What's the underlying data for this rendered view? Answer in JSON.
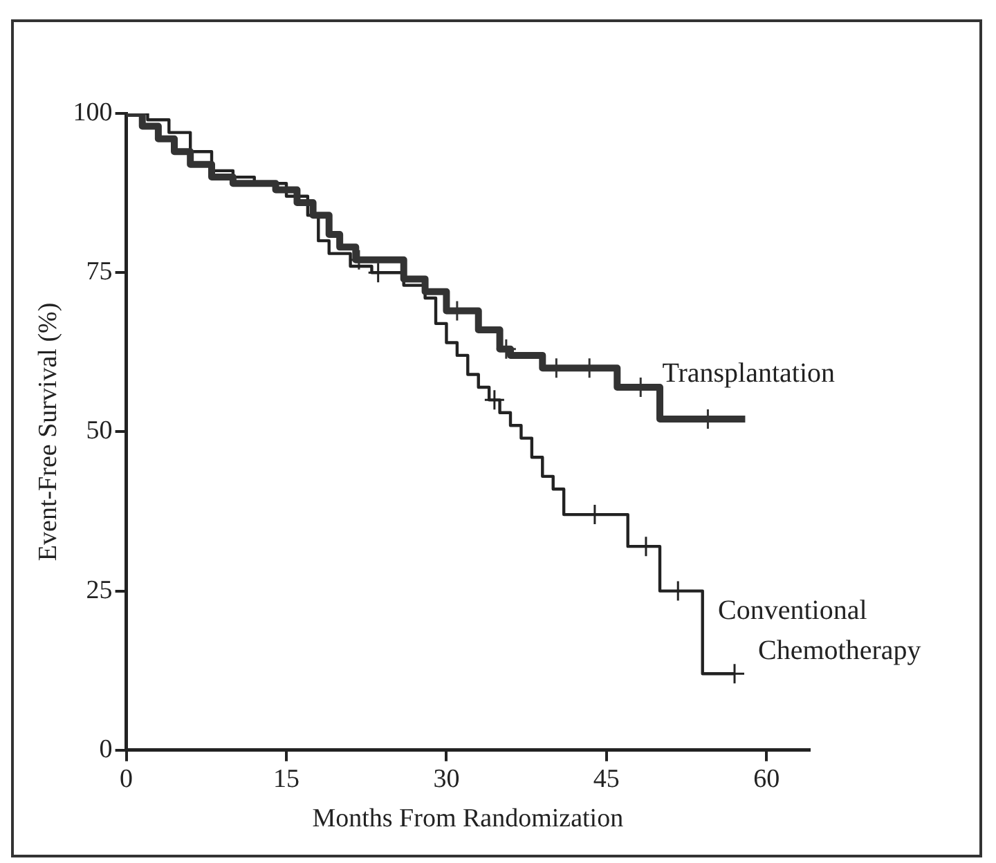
{
  "chart_data": {
    "type": "step",
    "xlabel": "Months From Randomization",
    "ylabel": "Event-Free Survival (%)",
    "xlim": [
      0,
      64
    ],
    "xticks": [
      0,
      15,
      30,
      45,
      60
    ],
    "ylim": [
      0,
      100
    ],
    "yticks": [
      0,
      25,
      50,
      75,
      100
    ],
    "grid": false,
    "line_style": "solid",
    "series": [
      {
        "name": "Transplantation",
        "color": "#333333",
        "x": [
          0,
          1.5,
          3,
          4.5,
          6,
          8,
          10,
          14,
          16,
          17.5,
          19,
          20,
          21.5,
          26,
          28,
          30,
          33,
          35,
          36,
          39,
          46,
          50,
          58
        ],
        "values": [
          100,
          98,
          96,
          94,
          92,
          90,
          89,
          88,
          86,
          84,
          81,
          79,
          77,
          74,
          72,
          69,
          66,
          63,
          62,
          60,
          57,
          52,
          52
        ]
      },
      {
        "name": "Conventional Chemotherapy",
        "color": "#222222",
        "x": [
          0,
          2,
          4,
          6,
          8,
          10,
          12,
          15,
          17,
          18,
          19,
          21,
          23,
          26,
          28,
          29,
          30,
          31,
          32,
          33,
          34,
          35,
          36,
          37,
          38,
          39,
          40,
          41,
          47,
          50,
          54,
          57
        ],
        "values": [
          100,
          99,
          97,
          94,
          91,
          90,
          89,
          87,
          84,
          80,
          78,
          76,
          75,
          73,
          71,
          67,
          64,
          62,
          59,
          57,
          55,
          53,
          51,
          49,
          46,
          43,
          41,
          37,
          32,
          25,
          12,
          12
        ]
      },
      {
        "type": "scatter",
        "marker": "cross",
        "color": "#333333",
        "x": [
          21.8,
          31,
          35.6,
          40.3,
          43.4,
          48.2,
          54.5
        ],
        "values": [
          77,
          69,
          63,
          60,
          60,
          57,
          52
        ]
      },
      {
        "type": "scatter",
        "marker": "cross",
        "color": "#222222",
        "x": [
          23.6,
          34.5,
          43.9,
          48.7,
          51.7,
          57
        ],
        "values": [
          75,
          55,
          37,
          32,
          25,
          12
        ]
      }
    ]
  }
}
